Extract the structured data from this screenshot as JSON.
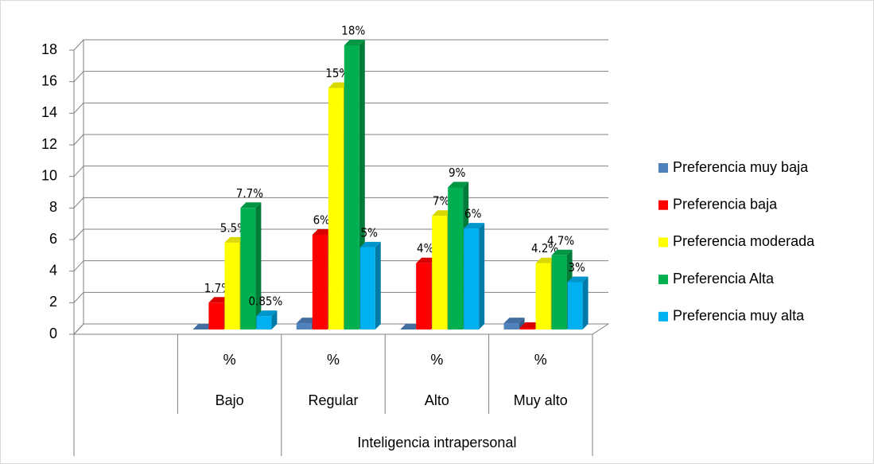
{
  "chart_data": {
    "type": "bar3d",
    "categories": [
      null,
      "Bajo",
      "Regular",
      "Alto",
      "Muy alto"
    ],
    "sublabels": [
      null,
      "%",
      "%",
      "%",
      "%"
    ],
    "group_label": "Inteligencia intrapersonal",
    "ylim": [
      0,
      18
    ],
    "yticks": [
      0,
      2,
      4,
      6,
      8,
      10,
      12,
      14,
      16,
      18
    ],
    "grid": true,
    "legend": "right",
    "series": [
      {
        "name": "Preferencia muy baja",
        "color": "#4f81bd",
        "values": [
          null,
          0,
          0.4,
          0,
          0.4
        ]
      },
      {
        "name": "Preferencia baja",
        "color": "#ff0000",
        "values": [
          null,
          1.7,
          6,
          4.2,
          0.1
        ],
        "value_labels": [
          null,
          "1.7%",
          "6%",
          "4%",
          null
        ]
      },
      {
        "name": "Preferencia moderada",
        "color": "#ffff00",
        "values": [
          null,
          5.5,
          15.3,
          7.2,
          4.2
        ],
        "value_labels": [
          null,
          "5.5%",
          "15%",
          "7%",
          "4.2%"
        ]
      },
      {
        "name": "Preferencia Alta",
        "color": "#00b050",
        "values": [
          null,
          7.7,
          18,
          9,
          4.7
        ],
        "value_labels": [
          null,
          "7.7%",
          "18%",
          "9%",
          "4.7%"
        ]
      },
      {
        "name": "Preferencia muy alta",
        "color": "#00b0f0",
        "values": [
          null,
          0.85,
          5.2,
          6.4,
          3
        ],
        "value_labels": [
          null,
          "0.85%",
          "5%",
          "6%",
          "3%"
        ]
      }
    ]
  }
}
